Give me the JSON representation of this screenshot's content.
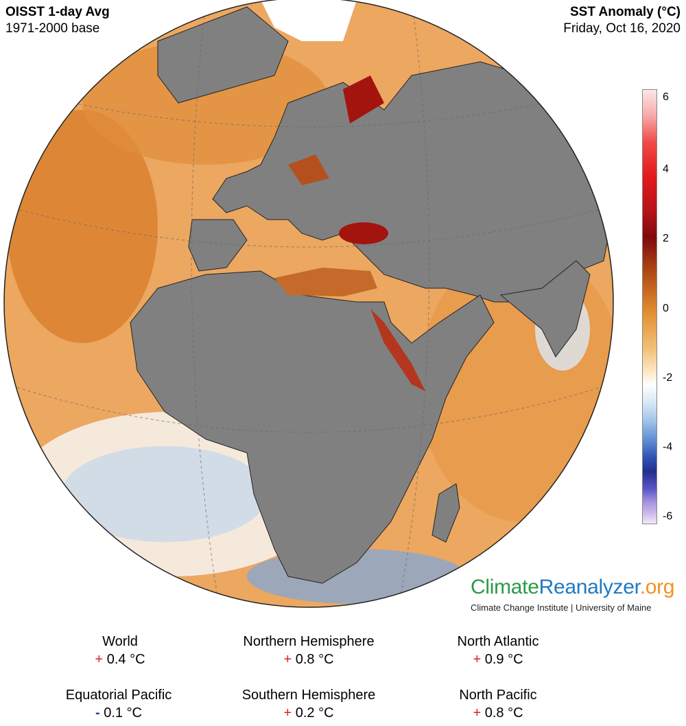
{
  "header": {
    "title_left": "OISST 1-day Avg",
    "subtitle_left": "1971-2000 base",
    "title_right": "SST Anomaly (°C)",
    "date": "Friday, Oct 16, 2020"
  },
  "map": {
    "projection": "orthographic",
    "center": "Europe / Africa / Indian Ocean",
    "land_color": "#808080",
    "ocean_warm_color": "#e39434",
    "ocean_hot_color": "#a3140f",
    "ocean_cool_color": "#a5c7ea",
    "ice_color": "#ffffff"
  },
  "colorbar": {
    "ticks": [
      "6",
      "4",
      "2",
      "0",
      "-2",
      "-4",
      "-6"
    ],
    "range": [
      -6,
      6
    ]
  },
  "branding": {
    "part1": "Climate",
    "part2": "Reanalyzer",
    "part3": ".org",
    "institution": "Climate Change Institute | University of Maine",
    "color1": "#2a9a46",
    "color2": "#1f7ac2",
    "color3": "#f1921f"
  },
  "stats": [
    {
      "label": "World",
      "sign": "+",
      "value": "0.4 °C"
    },
    {
      "label": "Northern Hemisphere",
      "sign": "+",
      "value": "0.8 °C"
    },
    {
      "label": "North Atlantic",
      "sign": "+",
      "value": "0.9 °C"
    },
    {
      "label": "Equatorial Pacific",
      "sign": "-",
      "value": "0.1 °C"
    },
    {
      "label": "Southern Hemisphere",
      "sign": "+",
      "value": "0.2 °C"
    },
    {
      "label": "North Pacific",
      "sign": "+",
      "value": "0.8 °C"
    }
  ]
}
